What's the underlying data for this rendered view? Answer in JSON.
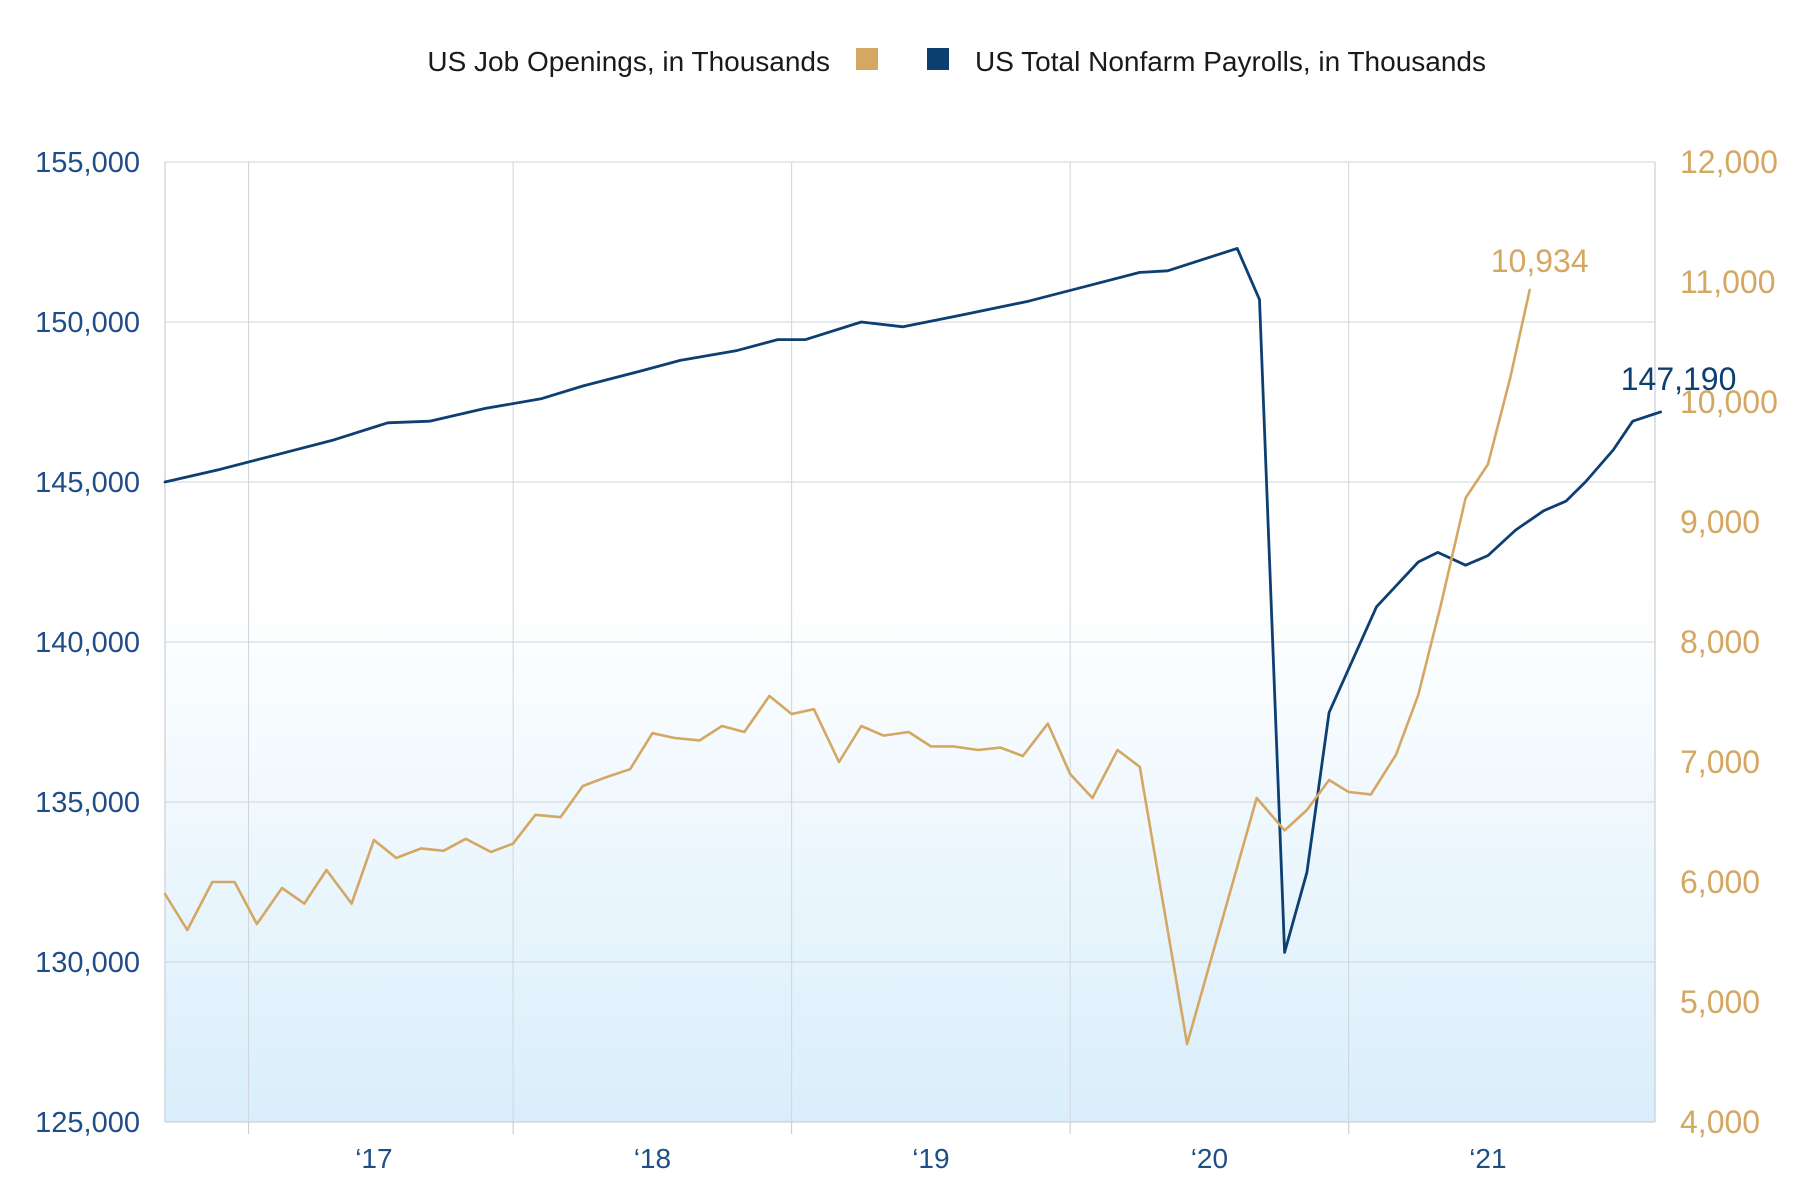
{
  "chart_data": {
    "type": "line",
    "legend": [
      {
        "label": "US Job Openings, in Thousands",
        "color": "#d4a763"
      },
      {
        "label": "US Total Nonfarm Payrolls, in Thousands",
        "color": "#0d3f72"
      }
    ],
    "left_axis": {
      "min": 125000,
      "max": 155000,
      "ticks": [
        "155,000",
        "150,000",
        "145,000",
        "140,000",
        "135,000",
        "130,000",
        "125,000"
      ],
      "tick_values": [
        155000,
        150000,
        145000,
        140000,
        135000,
        130000,
        125000
      ]
    },
    "right_axis": {
      "min": 4000,
      "max": 12000,
      "ticks": [
        "12,000",
        "11,000",
        "10,000",
        "9,000",
        "8,000",
        "7,000",
        "6,000",
        "5,000",
        "4,000"
      ],
      "tick_values": [
        12000,
        11000,
        10000,
        9000,
        8000,
        7000,
        6000,
        5000,
        4000
      ]
    },
    "x_axis": {
      "start": 2016.25,
      "end": 2021.6,
      "tick_labels": [
        "‘17",
        "‘18",
        "‘19",
        "‘20",
        "‘21"
      ],
      "tick_positions": [
        2017.0,
        2018.0,
        2019.0,
        2020.0,
        2021.0
      ],
      "gridlines": [
        2016.55,
        2017.5,
        2018.5,
        2019.5,
        2020.5
      ]
    },
    "grid": true,
    "series": [
      {
        "name": "US Total Nonfarm Payrolls, in Thousands",
        "color": "#0d3f72",
        "axis": "left",
        "end_label": "147,190",
        "points": [
          [
            2016.25,
            145000
          ],
          [
            2016.45,
            145400
          ],
          [
            2016.65,
            145850
          ],
          [
            2016.85,
            146300
          ],
          [
            2017.05,
            146850
          ],
          [
            2017.2,
            146900
          ],
          [
            2017.4,
            147300
          ],
          [
            2017.6,
            147600
          ],
          [
            2017.75,
            148000
          ],
          [
            2017.95,
            148450
          ],
          [
            2018.1,
            148800
          ],
          [
            2018.3,
            149100
          ],
          [
            2018.45,
            149450
          ],
          [
            2018.55,
            149450
          ],
          [
            2018.75,
            150000
          ],
          [
            2018.9,
            149850
          ],
          [
            2019.1,
            150200
          ],
          [
            2019.35,
            150650
          ],
          [
            2019.55,
            151100
          ],
          [
            2019.75,
            151550
          ],
          [
            2019.85,
            151600
          ],
          [
            2020.1,
            152300
          ],
          [
            2020.18,
            150700
          ],
          [
            2020.27,
            130300
          ],
          [
            2020.35,
            132800
          ],
          [
            2020.43,
            137800
          ],
          [
            2020.6,
            141100
          ],
          [
            2020.75,
            142500
          ],
          [
            2020.82,
            142800
          ],
          [
            2020.92,
            142400
          ],
          [
            2021.0,
            142700
          ],
          [
            2021.1,
            143500
          ],
          [
            2021.2,
            144100
          ],
          [
            2021.28,
            144400
          ],
          [
            2021.35,
            145000
          ],
          [
            2021.45,
            146000
          ],
          [
            2021.52,
            146900
          ],
          [
            2021.62,
            147190
          ]
        ]
      },
      {
        "name": "US Job Openings, in Thousands",
        "color": "#d4a763",
        "axis": "right",
        "end_label": "10,934",
        "points": [
          [
            2016.25,
            5900
          ],
          [
            2016.33,
            5600
          ],
          [
            2016.42,
            6000
          ],
          [
            2016.5,
            6000
          ],
          [
            2016.58,
            5650
          ],
          [
            2016.67,
            5950
          ],
          [
            2016.75,
            5820
          ],
          [
            2016.83,
            6100
          ],
          [
            2016.92,
            5820
          ],
          [
            2017.0,
            6350
          ],
          [
            2017.08,
            6200
          ],
          [
            2017.17,
            6280
          ],
          [
            2017.25,
            6260
          ],
          [
            2017.33,
            6360
          ],
          [
            2017.42,
            6250
          ],
          [
            2017.5,
            6320
          ],
          [
            2017.58,
            6560
          ],
          [
            2017.67,
            6540
          ],
          [
            2017.75,
            6800
          ],
          [
            2017.83,
            6870
          ],
          [
            2017.92,
            6940
          ],
          [
            2018.0,
            7240
          ],
          [
            2018.08,
            7200
          ],
          [
            2018.17,
            7180
          ],
          [
            2018.25,
            7300
          ],
          [
            2018.33,
            7250
          ],
          [
            2018.42,
            7550
          ],
          [
            2018.5,
            7400
          ],
          [
            2018.58,
            7440
          ],
          [
            2018.67,
            7000
          ],
          [
            2018.75,
            7300
          ],
          [
            2018.83,
            7220
          ],
          [
            2018.92,
            7250
          ],
          [
            2019.0,
            7130
          ],
          [
            2019.08,
            7130
          ],
          [
            2019.17,
            7100
          ],
          [
            2019.25,
            7120
          ],
          [
            2019.33,
            7050
          ],
          [
            2019.42,
            7320
          ],
          [
            2019.5,
            6900
          ],
          [
            2019.58,
            6700
          ],
          [
            2019.67,
            7100
          ],
          [
            2019.75,
            6960
          ],
          [
            2019.92,
            4650
          ],
          [
            2020.17,
            6700
          ],
          [
            2020.27,
            6430
          ],
          [
            2020.35,
            6600
          ],
          [
            2020.43,
            6850
          ],
          [
            2020.5,
            6750
          ],
          [
            2020.58,
            6730
          ],
          [
            2020.67,
            7060
          ],
          [
            2020.75,
            7560
          ],
          [
            2020.83,
            8300
          ],
          [
            2020.92,
            9200
          ],
          [
            2021.0,
            9480
          ],
          [
            2021.08,
            10200
          ],
          [
            2021.15,
            10934
          ]
        ]
      }
    ]
  }
}
